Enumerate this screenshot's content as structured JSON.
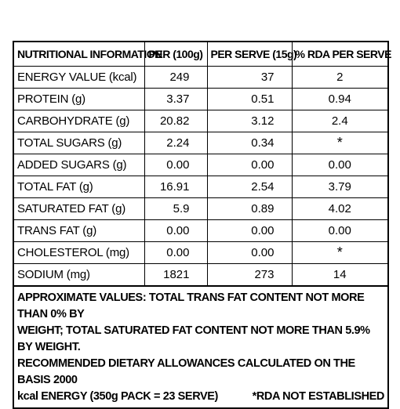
{
  "table": {
    "headers": [
      "NUTRITIONAL INFORMATION",
      "PER (100g)",
      "PER SERVE (15g)",
      "% RDA PER SERVE"
    ],
    "rows": [
      {
        "name": "ENERGY VALUE (kcal)",
        "per100": "249",
        "perServe": "37",
        "rda": "2"
      },
      {
        "name": "PROTEIN (g)",
        "per100": "3.37",
        "perServe": "0.51",
        "rda": "0.94"
      },
      {
        "name": "CARBOHYDRATE (g)",
        "per100": "20.82",
        "perServe": "3.12",
        "rda": "2.4"
      },
      {
        "name": "TOTAL SUGARS (g)",
        "per100": "2.24",
        "perServe": "0.34",
        "rda": "*"
      },
      {
        "name": "ADDED SUGARS (g)",
        "per100": "0.00",
        "perServe": "0.00",
        "rda": "0.00"
      },
      {
        "name": "TOTAL FAT (g)",
        "per100": "16.91",
        "perServe": "2.54",
        "rda": "3.79"
      },
      {
        "name": "SATURATED FAT (g)",
        "per100": "5.9",
        "perServe": "0.89",
        "rda": "4.02"
      },
      {
        "name": "TRANS FAT (g)",
        "per100": "0.00",
        "perServe": "0.00",
        "rda": "0.00"
      },
      {
        "name": "CHOLESTEROL (mg)",
        "per100": "0.00",
        "perServe": "0.00",
        "rda": "*"
      },
      {
        "name": "SODIUM (mg)",
        "per100": "1821",
        "perServe": "273",
        "rda": "14"
      }
    ]
  },
  "footnote": {
    "line1": "APPROXIMATE VALUES: TOTAL TRANS FAT CONTENT NOT MORE THAN 0% BY",
    "line2": "WEIGHT; TOTAL SATURATED FAT CONTENT NOT MORE THAN 5.9% BY WEIGHT.",
    "line3": "RECOMMENDED DIETARY ALLOWANCES CALCULATED ON THE BASIS 2000",
    "line4_left": "kcal ENERGY (350g PACK = 23 SERVE)",
    "line4_right": "*RDA NOT ESTABLISHED"
  }
}
